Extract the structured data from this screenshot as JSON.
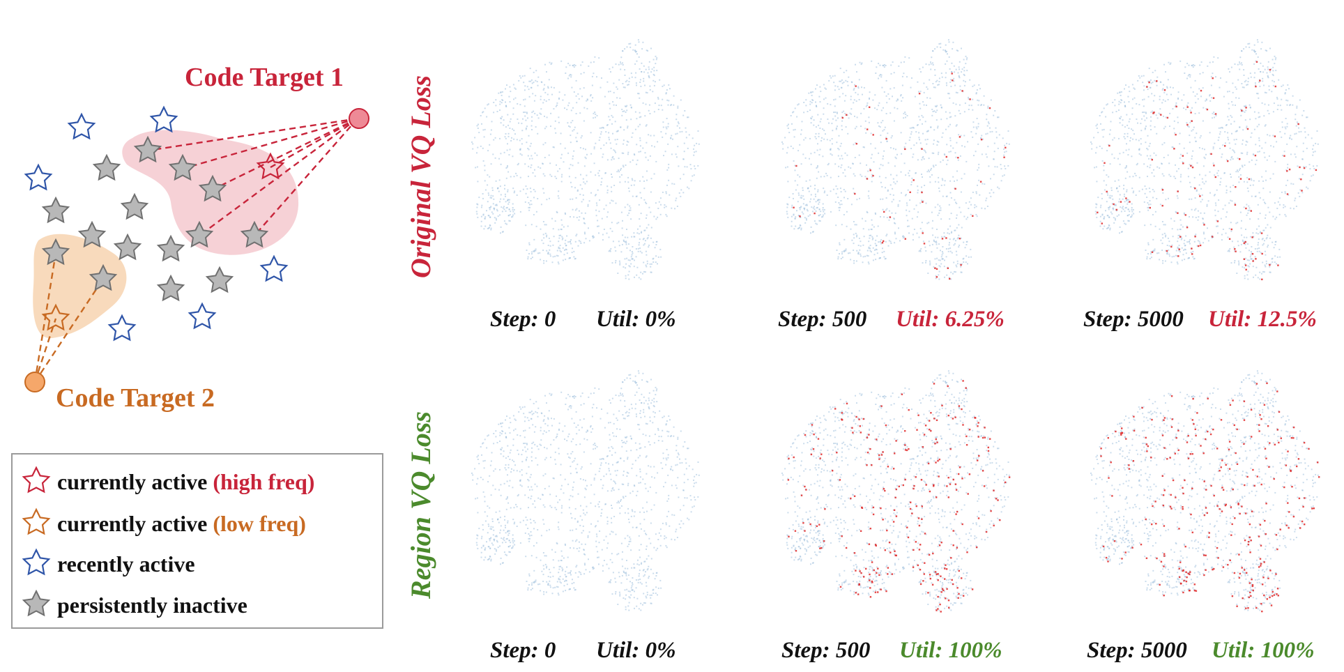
{
  "targets": {
    "t1": {
      "label": "Code Target 1",
      "color": "#c8243a"
    },
    "t2": {
      "label": "Code Target 2",
      "color": "#c86a22"
    }
  },
  "legend": {
    "items": [
      {
        "text": "currently active ",
        "highlight": "(high freq)",
        "icon": "red-star-outline-icon",
        "color": "#c8243a"
      },
      {
        "text": "currently active ",
        "highlight": "(low freq)",
        "icon": "orange-star-outline-icon",
        "color": "#c86a22"
      },
      {
        "text": "recently active",
        "highlight": "",
        "icon": "blue-star-outline-icon",
        "color": "#2f55a8"
      },
      {
        "text": "persistently inactive",
        "highlight": "",
        "icon": "gray-star-icon",
        "color": "#8c8c8c"
      }
    ]
  },
  "rows": [
    {
      "label": "Original VQ Loss",
      "color": "#c8243a",
      "panels": [
        {
          "step": "Step: 0",
          "util": "Util: 0%",
          "util_color": "#111111",
          "active_fraction": 0
        },
        {
          "step": "Step: 500",
          "util": "Util: 6.25%",
          "util_color": "#c8243a",
          "active_fraction": 0.0625
        },
        {
          "step": "Step: 5000",
          "util": "Util: 12.5%",
          "util_color": "#c8243a",
          "active_fraction": 0.125
        }
      ]
    },
    {
      "label": "Region VQ Loss",
      "color": "#4b8a2c",
      "panels": [
        {
          "step": "Step: 0",
          "util": "Util: 0%",
          "util_color": "#111111",
          "active_fraction": 0
        },
        {
          "step": "Step: 500",
          "util": "Util: 100%",
          "util_color": "#4b8a2c",
          "active_fraction": 1.0
        },
        {
          "step": "Step: 5000",
          "util": "Util: 100%",
          "util_color": "#4b8a2c",
          "active_fraction": 1.0
        }
      ]
    }
  ]
}
